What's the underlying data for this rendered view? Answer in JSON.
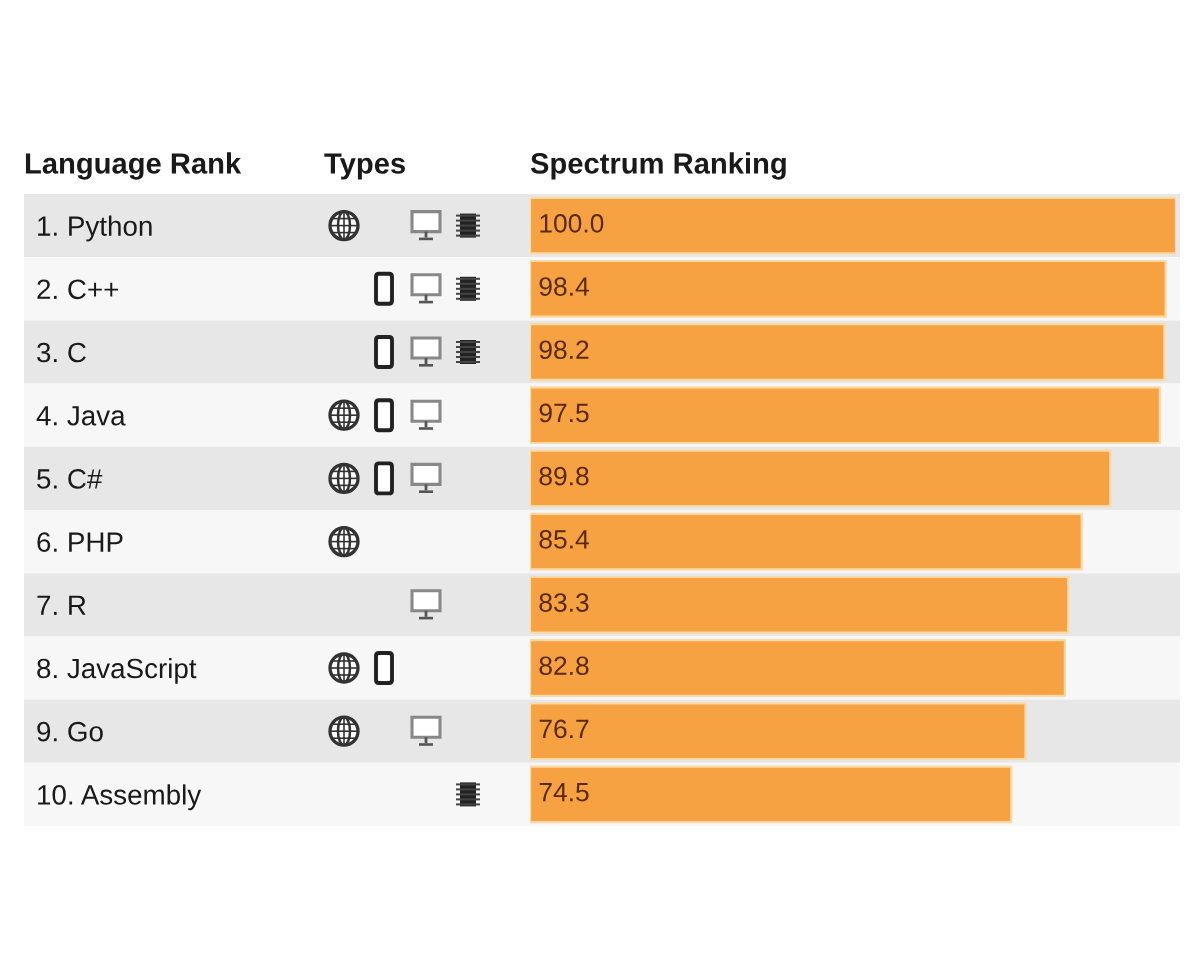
{
  "chart_data": {
    "type": "bar",
    "orientation": "horizontal",
    "ylabel": "Language Rank",
    "xlabel": "Spectrum Ranking",
    "annotations": [
      "Types"
    ],
    "categories": [
      "1. Python",
      "2. C++",
      "3. C",
      "4. Java",
      "5. C#",
      "6. PHP",
      "7. R",
      "8. JavaScript",
      "9. Go",
      "10. Assembly"
    ],
    "values": [
      100.0,
      98.4,
      98.2,
      97.5,
      89.8,
      85.4,
      83.3,
      82.8,
      76.7,
      74.5
    ],
    "value_labels": [
      "100.0",
      "98.4",
      "98.2",
      "97.5",
      "89.8",
      "85.4",
      "83.3",
      "82.8",
      "76.7",
      "74.5"
    ],
    "color": "#f6a142",
    "xlim": [
      0,
      100
    ],
    "tick_labels": "y"
  }
}
